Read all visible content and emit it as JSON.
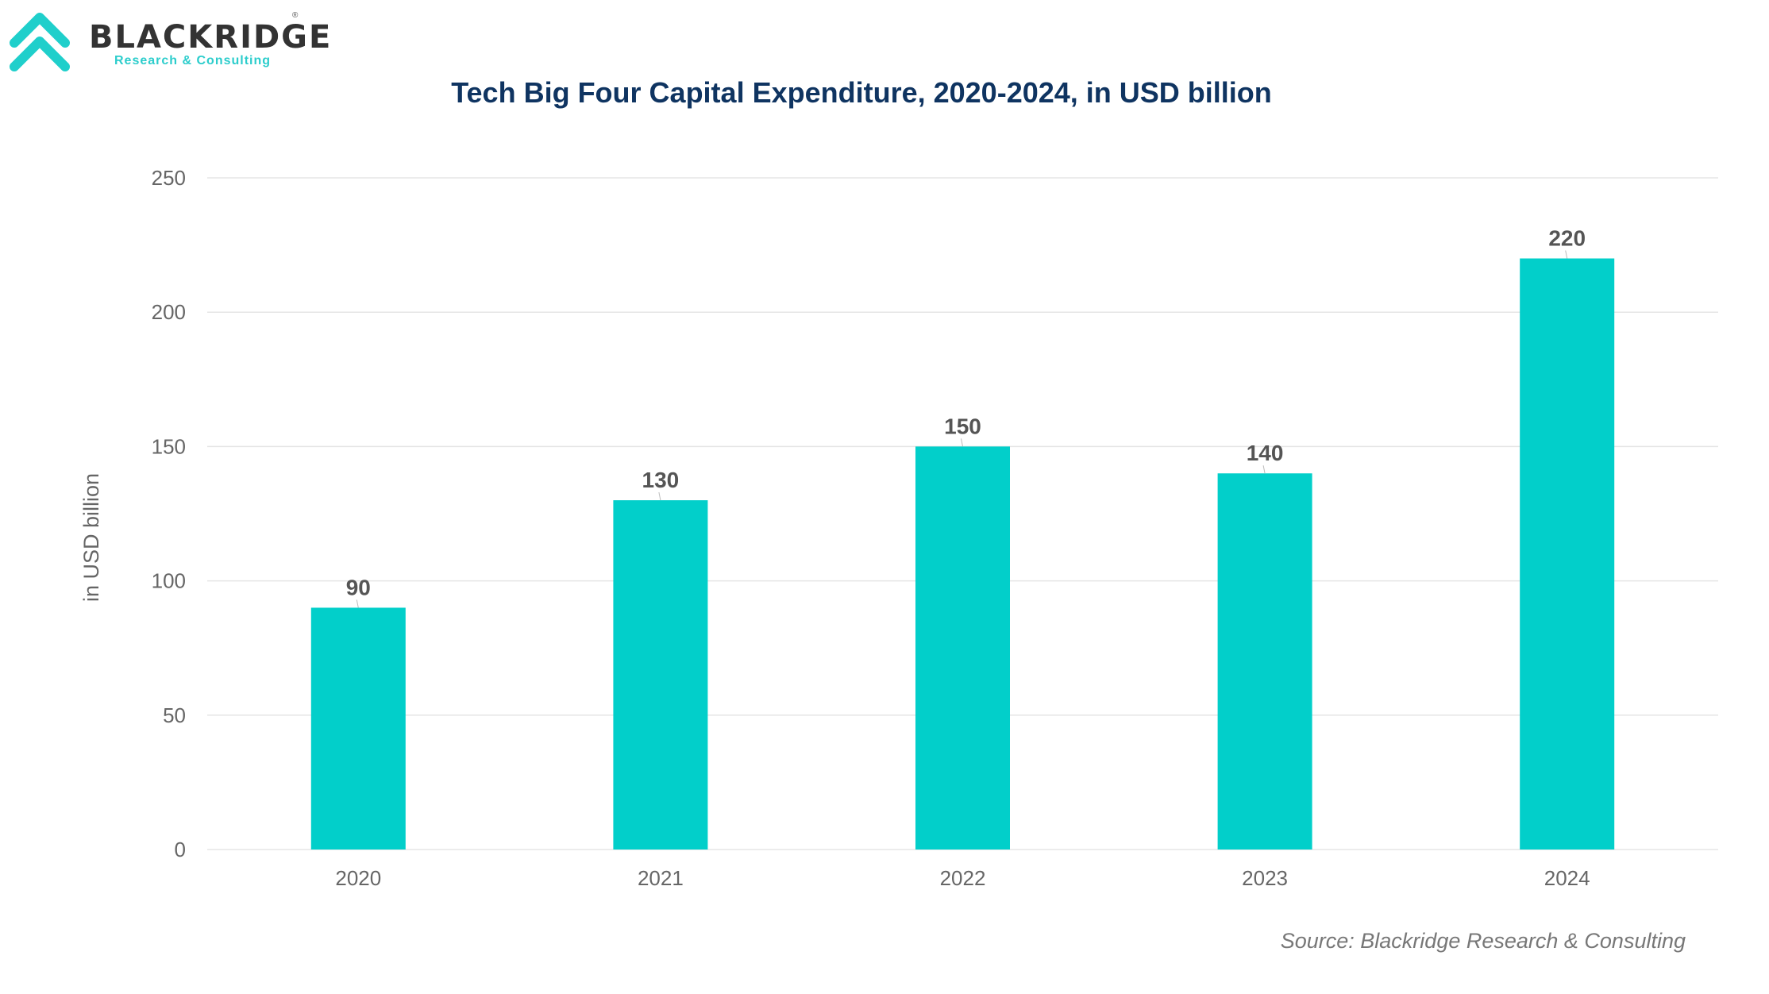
{
  "logo": {
    "name": "BLACKRIDGE",
    "subtitle": "Research & Consulting",
    "registered": "®"
  },
  "source": "Source: Blackridge Research & Consulting",
  "colors": {
    "bar": "#02cfca",
    "title": "#0f3461",
    "grid": "#e5e5e5"
  },
  "chart_data": {
    "type": "bar",
    "title": "Tech Big Four Capital Expenditure, 2020-2024, in USD billion",
    "xlabel": "",
    "ylabel": "in USD billion",
    "categories": [
      "2020",
      "2021",
      "2022",
      "2023",
      "2024"
    ],
    "values": [
      90,
      130,
      150,
      140,
      220
    ],
    "ylim": [
      0,
      250
    ],
    "yticks": [
      0,
      50,
      100,
      150,
      200,
      250
    ],
    "grid": true,
    "legend": "none"
  }
}
